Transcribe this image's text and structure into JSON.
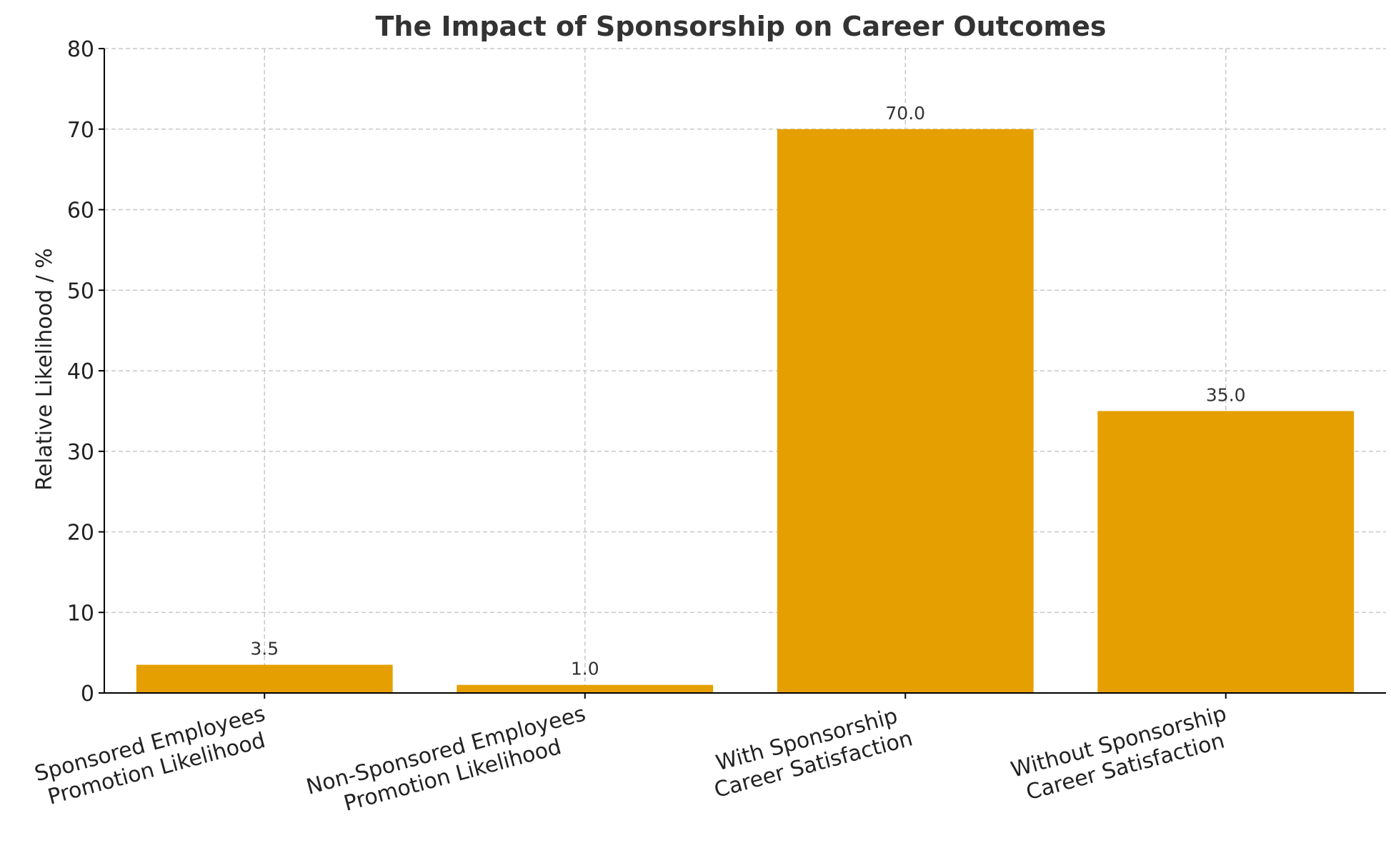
{
  "chart_data": {
    "type": "bar",
    "title": "The Impact of Sponsorship on Career Outcomes",
    "xlabel": "",
    "ylabel": "Relative Likelihood / %",
    "ylim": [
      0,
      80
    ],
    "yticks": [
      0,
      10,
      20,
      30,
      40,
      50,
      60,
      70,
      80
    ],
    "grid": true,
    "categories": [
      [
        "Sponsored Employees",
        "Promotion Likelihood"
      ],
      [
        "Non-Sponsored Employees",
        "Promotion Likelihood"
      ],
      [
        "With Sponsorship",
        "Career Satisfaction"
      ],
      [
        "Without Sponsorship",
        "Career Satisfaction"
      ]
    ],
    "values": [
      3.5,
      1.0,
      70.0,
      35.0
    ],
    "value_labels": [
      "3.5",
      "1.0",
      "70.0",
      "35.0"
    ],
    "bar_color": "#E69F00"
  }
}
